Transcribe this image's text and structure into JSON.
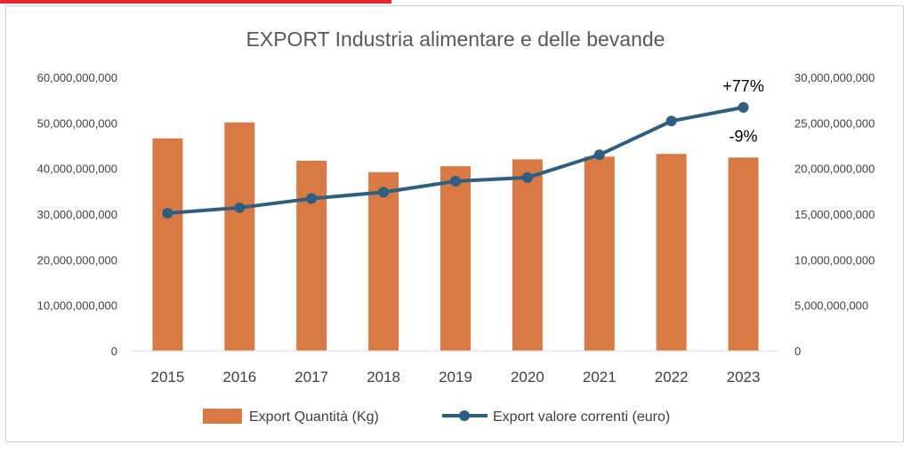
{
  "chart_data": {
    "type": "bar",
    "title": "EXPORT Industria alimentare e delle bevande",
    "categories": [
      "2015",
      "2016",
      "2017",
      "2018",
      "2019",
      "2020",
      "2021",
      "2022",
      "2023"
    ],
    "series": [
      {
        "name": "Export Quantità (Kg)",
        "type": "bar",
        "axis": "left",
        "color": "#d97a44",
        "values": [
          46600000000,
          50100000000,
          41700000000,
          39200000000,
          40500000000,
          42000000000,
          42600000000,
          43200000000,
          42400000000
        ]
      },
      {
        "name": "Export valore correnti (euro)",
        "type": "line",
        "axis": "right",
        "color": "#2e5f7e",
        "values": [
          15100000000,
          15700000000,
          16700000000,
          17400000000,
          18600000000,
          19000000000,
          21500000000,
          25200000000,
          26700000000
        ]
      }
    ],
    "y_left": {
      "min": 0,
      "max": 60000000000,
      "ticks": [
        "0",
        "10,000,000,000",
        "20,000,000,000",
        "30,000,000,000",
        "40,000,000,000",
        "50,000,000,000",
        "60,000,000,000"
      ]
    },
    "y_right": {
      "min": 0,
      "max": 30000000000,
      "ticks": [
        "0",
        "5,000,000,000",
        "10,000,000,000",
        "15,000,000,000",
        "20,000,000,000",
        "25,000,000,000",
        "30,000,000,000"
      ]
    },
    "annotations": [
      {
        "text": "+77%",
        "series": "Export valore correnti (euro)",
        "category": "2023"
      },
      {
        "text": "-9%",
        "series": "Export Quantità (Kg)",
        "category": "2023"
      }
    ],
    "legend": "bottom",
    "grid": false
  }
}
